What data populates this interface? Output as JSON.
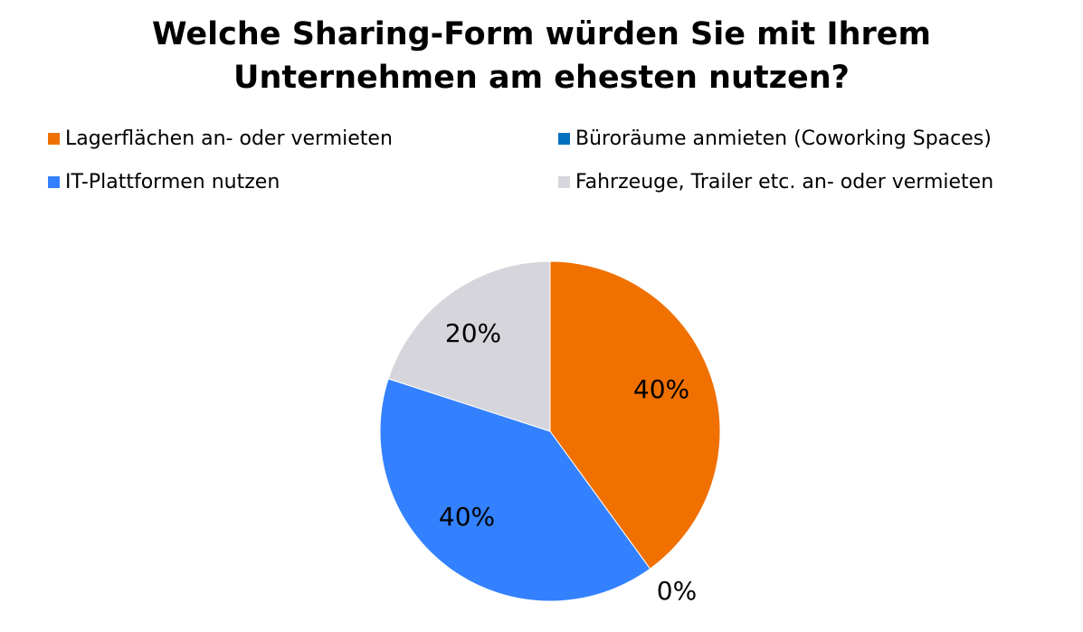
{
  "chart_data": {
    "type": "pie",
    "title_line1": "Welche Sharing-Form würden Sie mit Ihrem",
    "title_line2": "Unternehmen am ehesten nutzen?",
    "legend_position": "top",
    "slices": [
      {
        "name": "Lagerflächen an- oder vermieten",
        "value": 40,
        "label": "40%",
        "color": "#F07000"
      },
      {
        "name": "Büroräume anmieten (Coworking Spaces)",
        "value": 0,
        "label": "0%",
        "color": "#0070C0"
      },
      {
        "name": "IT-Plattformen nutzen",
        "value": 40,
        "label": "40%",
        "color": "#3381FF"
      },
      {
        "name": "Fahrzeuge, Trailer etc. an- oder vermieten",
        "value": 20,
        "label": "20%",
        "color": "#D5D5DB"
      }
    ]
  }
}
